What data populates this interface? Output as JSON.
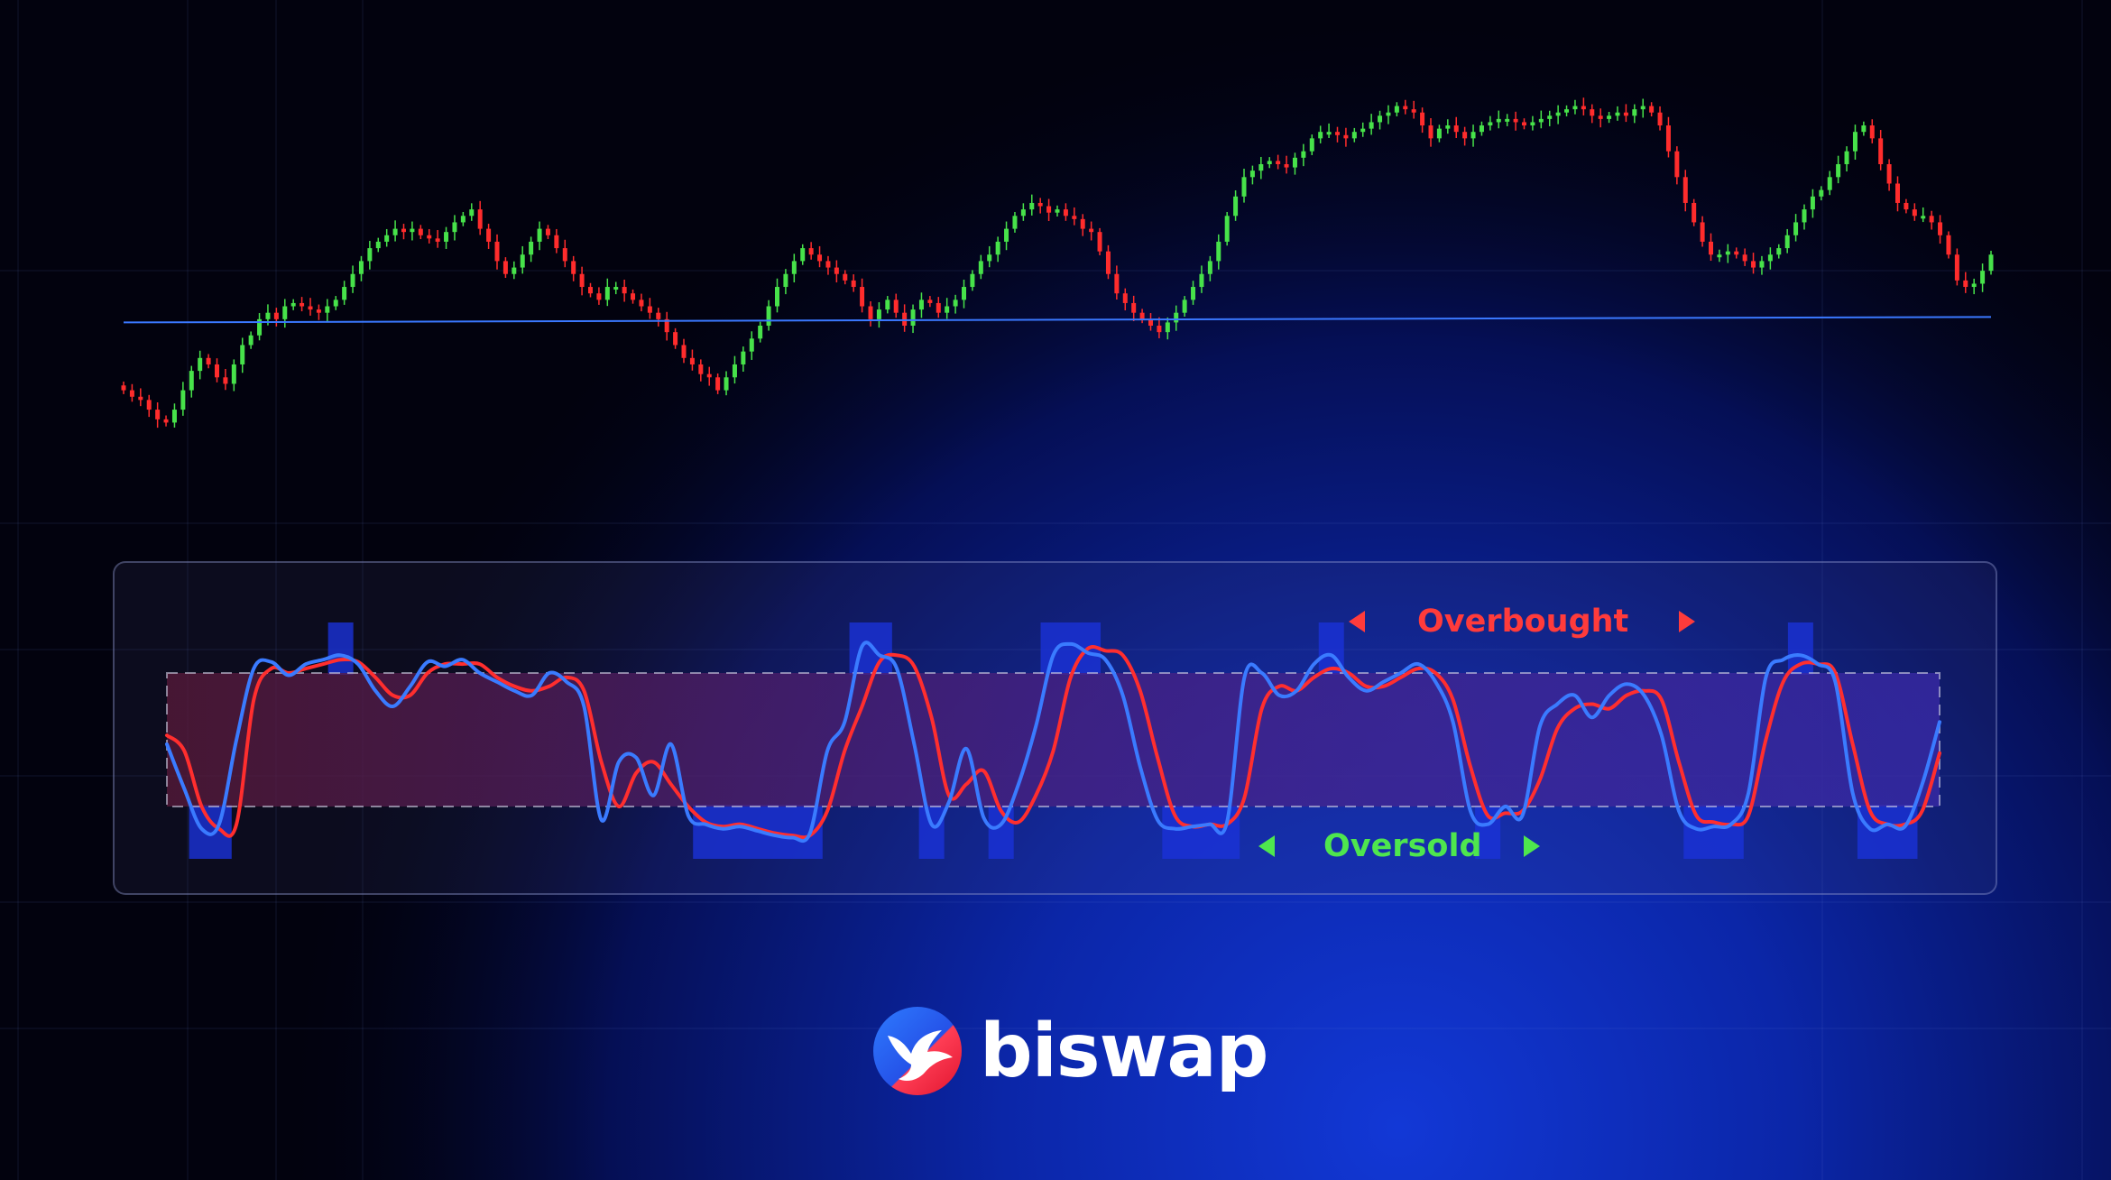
{
  "brand": {
    "name": "biswap",
    "logo_icon": "bird-in-circle-icon"
  },
  "colors": {
    "background_dark": "#02020e",
    "background_blue": "#1238d6",
    "bull": "#47e24a",
    "bear": "#ff2c2c",
    "level_line": "#3a78ff",
    "k_line": "#3a7bff",
    "d_line": "#ff2e2e",
    "overbought_text": "#ff3b3b",
    "oversold_text": "#4ee64e",
    "zone_highlight": "#1a32d8"
  },
  "chart_data": [
    {
      "type": "candlestick",
      "title": "",
      "xlabel": "",
      "ylabel": "",
      "grid": false,
      "support_level": 51,
      "closes": [
        30,
        28,
        27,
        24,
        21,
        20,
        24,
        30,
        36,
        40,
        38,
        34,
        32,
        38,
        44,
        47,
        52,
        54,
        52,
        56,
        57,
        56,
        55,
        54,
        56,
        58,
        62,
        66,
        70,
        74,
        76,
        78,
        80,
        79,
        80,
        78,
        77,
        76,
        79,
        82,
        84,
        86,
        80,
        76,
        70,
        66,
        68,
        72,
        76,
        80,
        78,
        74,
        70,
        66,
        62,
        60,
        58,
        62,
        62,
        60,
        58,
        56,
        54,
        52,
        48,
        44,
        40,
        38,
        35,
        34,
        30,
        34,
        38,
        42,
        46,
        50,
        56,
        62,
        66,
        70,
        74,
        72,
        70,
        68,
        66,
        64,
        62,
        56,
        52,
        55,
        58,
        54,
        50,
        55,
        58,
        57,
        54,
        56,
        58,
        62,
        66,
        70,
        72,
        76,
        80,
        84,
        86,
        88,
        87,
        85,
        86,
        84,
        83,
        80,
        79,
        73,
        66,
        60,
        57,
        54,
        52,
        50,
        48,
        51,
        54,
        58,
        62,
        66,
        70,
        76,
        84,
        90,
        96,
        98,
        100,
        101,
        100,
        99,
        102,
        104,
        108,
        110,
        110,
        109,
        108,
        110,
        111,
        113,
        115,
        116,
        118,
        117,
        116,
        112,
        108,
        111,
        112,
        110,
        108,
        110,
        112,
        113,
        114,
        114,
        113,
        112,
        113,
        114,
        115,
        116,
        117,
        118,
        117,
        115,
        114,
        115,
        116,
        115,
        117,
        118,
        116,
        112,
        104,
        96,
        88,
        82,
        76,
        72,
        72,
        73,
        72,
        70,
        68,
        70,
        72,
        74,
        78,
        82,
        86,
        90,
        92,
        96,
        100,
        104,
        110,
        112,
        108,
        100,
        94,
        88,
        86,
        84,
        84,
        82,
        78,
        72,
        64,
        62,
        63,
        67,
        72
      ]
    },
    {
      "type": "line",
      "title": "",
      "xlabel": "",
      "ylabel": "",
      "grid": false,
      "ylim": [
        0,
        100
      ],
      "overbought_level": 80,
      "oversold_level": 20,
      "series": [
        {
          "color": "#3a7bff",
          "values": [
            48,
            28,
            10,
            12,
            50,
            82,
            85,
            79,
            84,
            86,
            88,
            84,
            72,
            65,
            74,
            85,
            83,
            86,
            80,
            76,
            72,
            70,
            80,
            76,
            65,
            14,
            40,
            42,
            25,
            48,
            16,
            12,
            10,
            11,
            9,
            7,
            6,
            8,
            45,
            58,
            92,
            88,
            82,
            48,
            12,
            22,
            46,
            15,
            12,
            30,
            56,
            88,
            93,
            89,
            86,
            70,
            38,
            14,
            10,
            11,
            12,
            13,
            78,
            80,
            70,
            72,
            84,
            88,
            78,
            72,
            76,
            80,
            84,
            76,
            58,
            18,
            12,
            20,
            16,
            56,
            66,
            70,
            60,
            70,
            75,
            70,
            52,
            18,
            10,
            11,
            12,
            26,
            78,
            86,
            88,
            84,
            76,
            26,
            10,
            12,
            11,
            30,
            58
          ]
        },
        {
          "color": "#ff2e2e",
          "values": [
            52,
            45,
            20,
            10,
            12,
            68,
            82,
            80,
            82,
            84,
            86,
            85,
            78,
            70,
            70,
            80,
            84,
            84,
            84,
            78,
            74,
            72,
            74,
            78,
            72,
            40,
            20,
            35,
            40,
            30,
            20,
            13,
            11,
            12,
            10,
            8,
            7,
            7,
            18,
            45,
            65,
            85,
            88,
            83,
            60,
            25,
            30,
            36,
            18,
            13,
            25,
            45,
            78,
            91,
            90,
            88,
            72,
            42,
            16,
            11,
            12,
            12,
            24,
            64,
            74,
            72,
            78,
            82,
            80,
            74,
            74,
            78,
            82,
            80,
            68,
            38,
            16,
            17,
            18,
            32,
            55,
            64,
            66,
            64,
            70,
            72,
            68,
            40,
            16,
            13,
            12,
            16,
            50,
            76,
            84,
            84,
            80,
            48,
            18,
            12,
            12,
            18,
            44
          ]
        }
      ],
      "annotations": [
        {
          "id": "overbought",
          "text": "Overbought",
          "color": "#ff3b3b"
        },
        {
          "id": "oversold",
          "text": "Oversold",
          "color": "#4ee64e"
        }
      ]
    }
  ]
}
